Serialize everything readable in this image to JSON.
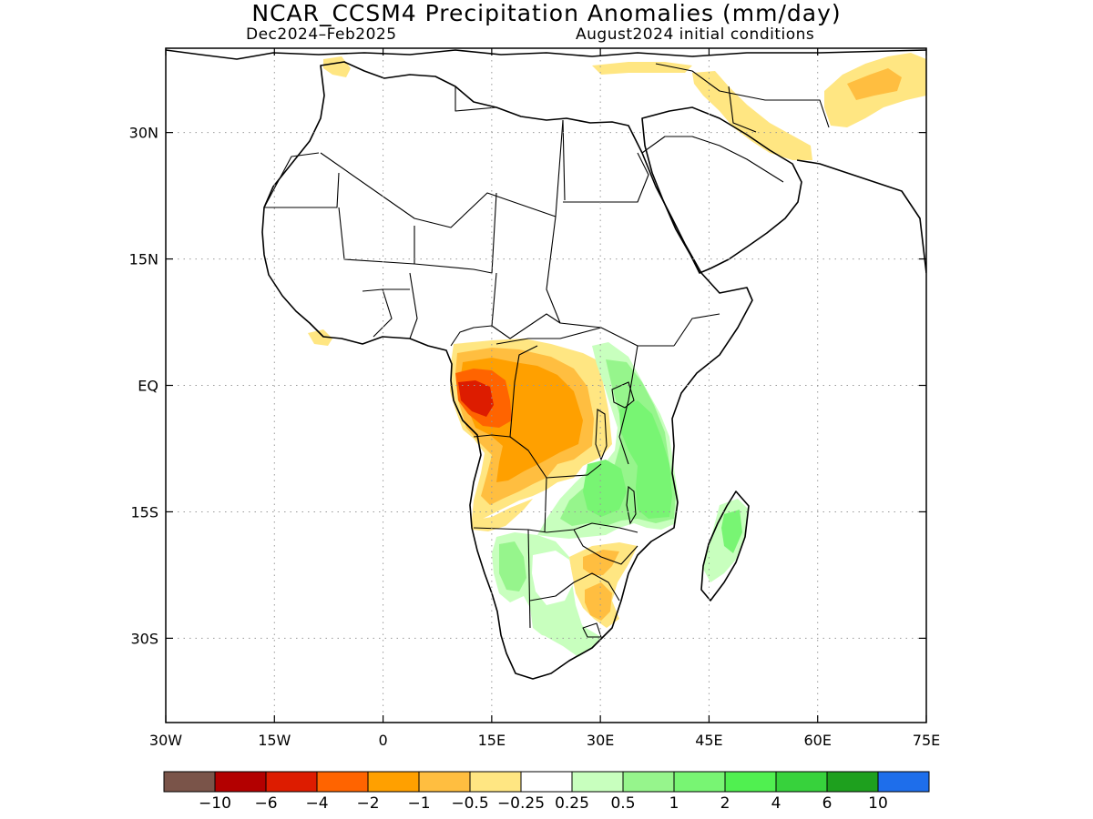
{
  "title": "NCAR_CCSM4 Precipitation Anomalies (mm/day)",
  "subtitle_left": "Dec2024–Feb2025",
  "subtitle_right": "August2024 initial conditions",
  "map": {
    "lon_range": [
      -30,
      75
    ],
    "lat_range": [
      -40,
      40
    ],
    "lon_ticks": [
      {
        "value": -30,
        "label": "30W"
      },
      {
        "value": -15,
        "label": "15W"
      },
      {
        "value": 0,
        "label": "0"
      },
      {
        "value": 15,
        "label": "15E"
      },
      {
        "value": 30,
        "label": "30E"
      },
      {
        "value": 45,
        "label": "45E"
      },
      {
        "value": 60,
        "label": "60E"
      },
      {
        "value": 75,
        "label": "75E"
      }
    ],
    "lat_ticks": [
      {
        "value": 30,
        "label": "30N"
      },
      {
        "value": 15,
        "label": "15N"
      },
      {
        "value": 0,
        "label": "EQ"
      },
      {
        "value": -15,
        "label": "15S"
      },
      {
        "value": -30,
        "label": "30S"
      }
    ],
    "grid": "dotted"
  },
  "colorbar": {
    "colors": [
      "#7a5449",
      "#b30000",
      "#dd1c00",
      "#ff6400",
      "#ffa000",
      "#ffbe40",
      "#ffe682",
      "#ffffff",
      "#c8ffbe",
      "#96f58c",
      "#78f573",
      "#50f050",
      "#37d23c",
      "#1ea01e",
      "#1e6eeb"
    ],
    "labels": [
      "−10",
      "−6",
      "−4",
      "−2",
      "−1",
      "−0.5",
      "−0.25",
      "0.25",
      "0.5",
      "1",
      "2",
      "4",
      "6",
      "10"
    ]
  }
}
